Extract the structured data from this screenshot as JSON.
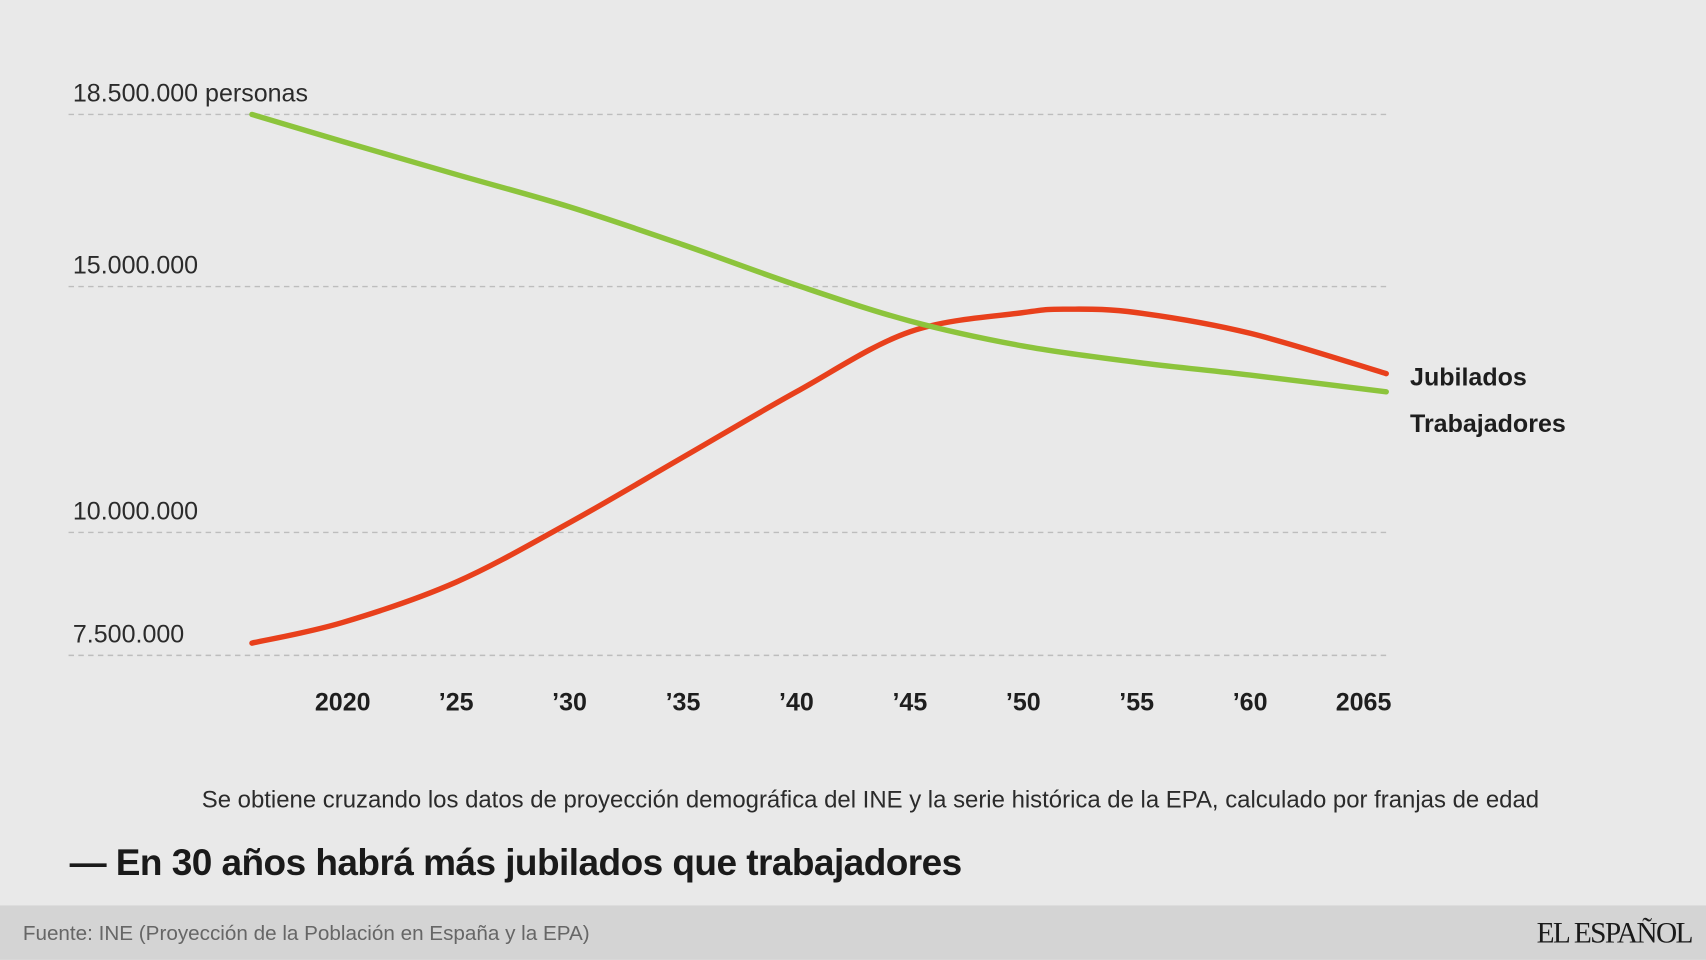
{
  "chart_data": {
    "type": "line",
    "title": "— En 30 años habrá más jubilados que trabajadores",
    "subtitle": "Se obtiene cruzando los datos de proyección demográfica del INE y la serie histórica de la EPA, calculado por franjas de edad",
    "source": "Fuente: INE (Proyección de la Población en España y la EPA)",
    "xlabel": "",
    "ylabel": "",
    "xlim": [
      2016,
      2066
    ],
    "ylim": [
      7500000,
      18500000
    ],
    "grid": true,
    "y_ticks": [
      {
        "value": 18500000,
        "label": "18.500.000 personas"
      },
      {
        "value": 15000000,
        "label": "15.000.000"
      },
      {
        "value": 10000000,
        "label": "10.000.000"
      },
      {
        "value": 7500000,
        "label": "7.500.000"
      }
    ],
    "x_ticks": [
      {
        "value": 2020,
        "label": "2020"
      },
      {
        "value": 2025,
        "label": "’25"
      },
      {
        "value": 2030,
        "label": "’30"
      },
      {
        "value": 2035,
        "label": "’35"
      },
      {
        "value": 2040,
        "label": "’40"
      },
      {
        "value": 2045,
        "label": "’45"
      },
      {
        "value": 2050,
        "label": "’50"
      },
      {
        "value": 2055,
        "label": "’55"
      },
      {
        "value": 2060,
        "label": "’60"
      },
      {
        "value": 2065,
        "label": "2065"
      }
    ],
    "series": [
      {
        "name": "Jubilados",
        "color": "#e8401c",
        "x": [
          2016,
          2020,
          2025,
          2030,
          2035,
          2040,
          2045,
          2050,
          2052,
          2055,
          2060,
          2066
        ],
        "y": [
          7750000,
          8170000,
          8990000,
          10200000,
          11530000,
          12860000,
          14080000,
          14470000,
          14540000,
          14470000,
          14050000,
          13230000
        ]
      },
      {
        "name": "Trabajadores",
        "color": "#8cc43c",
        "x": [
          2016,
          2020,
          2025,
          2030,
          2035,
          2040,
          2045,
          2050,
          2055,
          2060,
          2066
        ],
        "y": [
          18500000,
          17950000,
          17280000,
          16620000,
          15850000,
          15030000,
          14300000,
          13790000,
          13460000,
          13200000,
          12860000
        ]
      }
    ],
    "legend": "inline-right"
  },
  "branding": {
    "logo": "EL ESPAÑOL"
  },
  "colors": {
    "background": "#e9e9e9",
    "footer": "#d4d4d4",
    "grid": "#bdbdbd"
  }
}
